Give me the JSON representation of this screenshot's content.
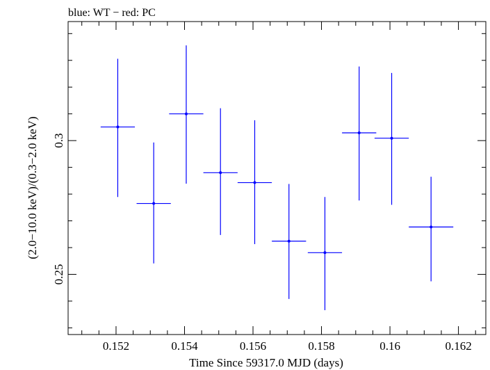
{
  "chart_data": {
    "type": "scatter",
    "title": "blue: WT − red: PC",
    "xlabel": "Time Since 59317.0 MJD (days)",
    "ylabel": "(2.0−10.0 keV)/(0.3−2.0 keV)",
    "xlim": [
      0.1506,
      0.1628
    ],
    "ylim": [
      0.2275,
      0.3445
    ],
    "x_ticks": [
      0.152,
      0.154,
      0.156,
      0.158,
      0.16,
      0.162
    ],
    "x_tick_labels": [
      "0.152",
      "0.154",
      "0.156",
      "0.158",
      "0.16",
      "0.162"
    ],
    "y_ticks": [
      0.25,
      0.3
    ],
    "y_tick_labels": [
      "0.25",
      "0.3"
    ],
    "grid": false,
    "series": [
      {
        "color": "#0000ff",
        "points": [
          {
            "x": 0.15205,
            "y": 0.3051,
            "xerr": 0.0005,
            "ylow": 0.2789,
            "yhigh": 0.3306
          },
          {
            "x": 0.1531,
            "y": 0.2765,
            "xerr": 0.0005,
            "ylow": 0.2541,
            "yhigh": 0.2993
          },
          {
            "x": 0.15405,
            "y": 0.31,
            "xerr": 0.0005,
            "ylow": 0.2839,
            "yhigh": 0.3356
          },
          {
            "x": 0.15505,
            "y": 0.288,
            "xerr": 0.0005,
            "ylow": 0.2647,
            "yhigh": 0.3121
          },
          {
            "x": 0.15605,
            "y": 0.2843,
            "xerr": 0.0005,
            "ylow": 0.2613,
            "yhigh": 0.3076
          },
          {
            "x": 0.15705,
            "y": 0.2624,
            "xerr": 0.0005,
            "ylow": 0.2408,
            "yhigh": 0.2838
          },
          {
            "x": 0.1581,
            "y": 0.2581,
            "xerr": 0.0005,
            "ylow": 0.2366,
            "yhigh": 0.2789
          },
          {
            "x": 0.1591,
            "y": 0.3029,
            "xerr": 0.0005,
            "ylow": 0.2776,
            "yhigh": 0.3277
          },
          {
            "x": 0.16005,
            "y": 0.3009,
            "xerr": 0.0005,
            "ylow": 0.276,
            "yhigh": 0.3253
          },
          {
            "x": 0.1612,
            "y": 0.2677,
            "xerr": 0.00065,
            "ylow": 0.2474,
            "yhigh": 0.2865
          }
        ]
      }
    ]
  }
}
